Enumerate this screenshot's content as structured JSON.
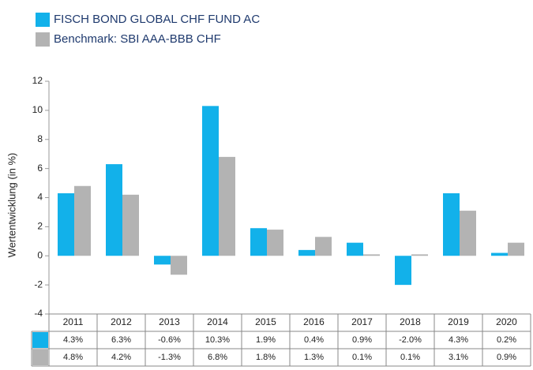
{
  "chart_data": {
    "type": "bar",
    "ylabel": "Wertentwicklung (in %)",
    "categories": [
      "2011",
      "2012",
      "2013",
      "2014",
      "2015",
      "2016",
      "2017",
      "2018",
      "2019",
      "2020"
    ],
    "series": [
      {
        "name": "FISCH BOND GLOBAL CHF FUND AC",
        "color": "#12b1ea",
        "values": [
          4.3,
          6.3,
          -0.6,
          10.3,
          1.9,
          0.4,
          0.9,
          -2.0,
          4.3,
          0.2
        ],
        "value_labels": [
          "4.3%",
          "6.3%",
          "-0.6%",
          "10.3%",
          "1.9%",
          "0.4%",
          "0.9%",
          "-2.0%",
          "4.3%",
          "0.2%"
        ]
      },
      {
        "name": "Benchmark: SBI AAA-BBB CHF",
        "color": "#b3b3b3",
        "values": [
          4.8,
          4.2,
          -1.3,
          6.8,
          1.8,
          1.3,
          0.1,
          0.1,
          3.1,
          0.9
        ],
        "value_labels": [
          "4.8%",
          "4.2%",
          "-1.3%",
          "6.8%",
          "1.8%",
          "1.3%",
          "0.1%",
          "0.1%",
          "3.1%",
          "0.9%"
        ]
      }
    ],
    "ylim": [
      -4,
      12
    ],
    "yticks": [
      -4,
      -2,
      0,
      2,
      4,
      6,
      8,
      10,
      12
    ],
    "grid": false
  }
}
